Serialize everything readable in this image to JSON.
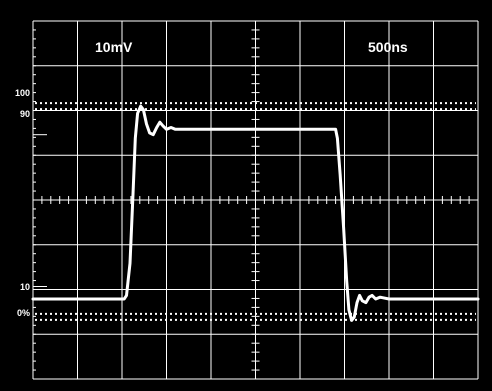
{
  "chart_data": {
    "type": "line",
    "title": "",
    "grid": true,
    "vertical_scale_label": "10mV",
    "time_scale_label": "500ns",
    "y_reference_labels": [
      "100",
      "90",
      "10",
      "0%"
    ],
    "x_divisions": 10,
    "y_divisions": 8,
    "x_unit": "div",
    "y_unit": "% of step",
    "xlim": [
      0,
      10
    ],
    "ylim": [
      -70,
      130
    ],
    "series": [
      {
        "points": [
          [
            0.0,
            0
          ],
          [
            1.0,
            0
          ],
          [
            2.0,
            0
          ],
          [
            2.05,
            0
          ],
          [
            2.1,
            2
          ],
          [
            2.18,
            20
          ],
          [
            2.25,
            60
          ],
          [
            2.3,
            90
          ],
          [
            2.35,
            104
          ],
          [
            2.42,
            108
          ],
          [
            2.48,
            106
          ],
          [
            2.55,
            98
          ],
          [
            2.62,
            93
          ],
          [
            2.7,
            92
          ],
          [
            2.78,
            96
          ],
          [
            2.85,
            99
          ],
          [
            2.92,
            97
          ],
          [
            3.0,
            95
          ],
          [
            3.1,
            96
          ],
          [
            3.2,
            95
          ],
          [
            3.4,
            95
          ],
          [
            4.0,
            95
          ],
          [
            5.0,
            95
          ],
          [
            6.0,
            95
          ],
          [
            6.6,
            95
          ],
          [
            6.8,
            95
          ],
          [
            6.84,
            90
          ],
          [
            6.9,
            70
          ],
          [
            6.98,
            40
          ],
          [
            7.05,
            10
          ],
          [
            7.1,
            -6
          ],
          [
            7.16,
            -12
          ],
          [
            7.22,
            -10
          ],
          [
            7.28,
            -2
          ],
          [
            7.34,
            2
          ],
          [
            7.4,
            -1
          ],
          [
            7.48,
            -2
          ],
          [
            7.55,
            1
          ],
          [
            7.62,
            2
          ],
          [
            7.7,
            0
          ],
          [
            7.8,
            1
          ],
          [
            8.0,
            0
          ],
          [
            9.0,
            0
          ],
          [
            10.0,
            0
          ]
        ]
      }
    ]
  },
  "colors": {
    "bezel": "#000000",
    "screen": "#000000",
    "grid": "#ffffff",
    "trace": "#ffffff"
  }
}
